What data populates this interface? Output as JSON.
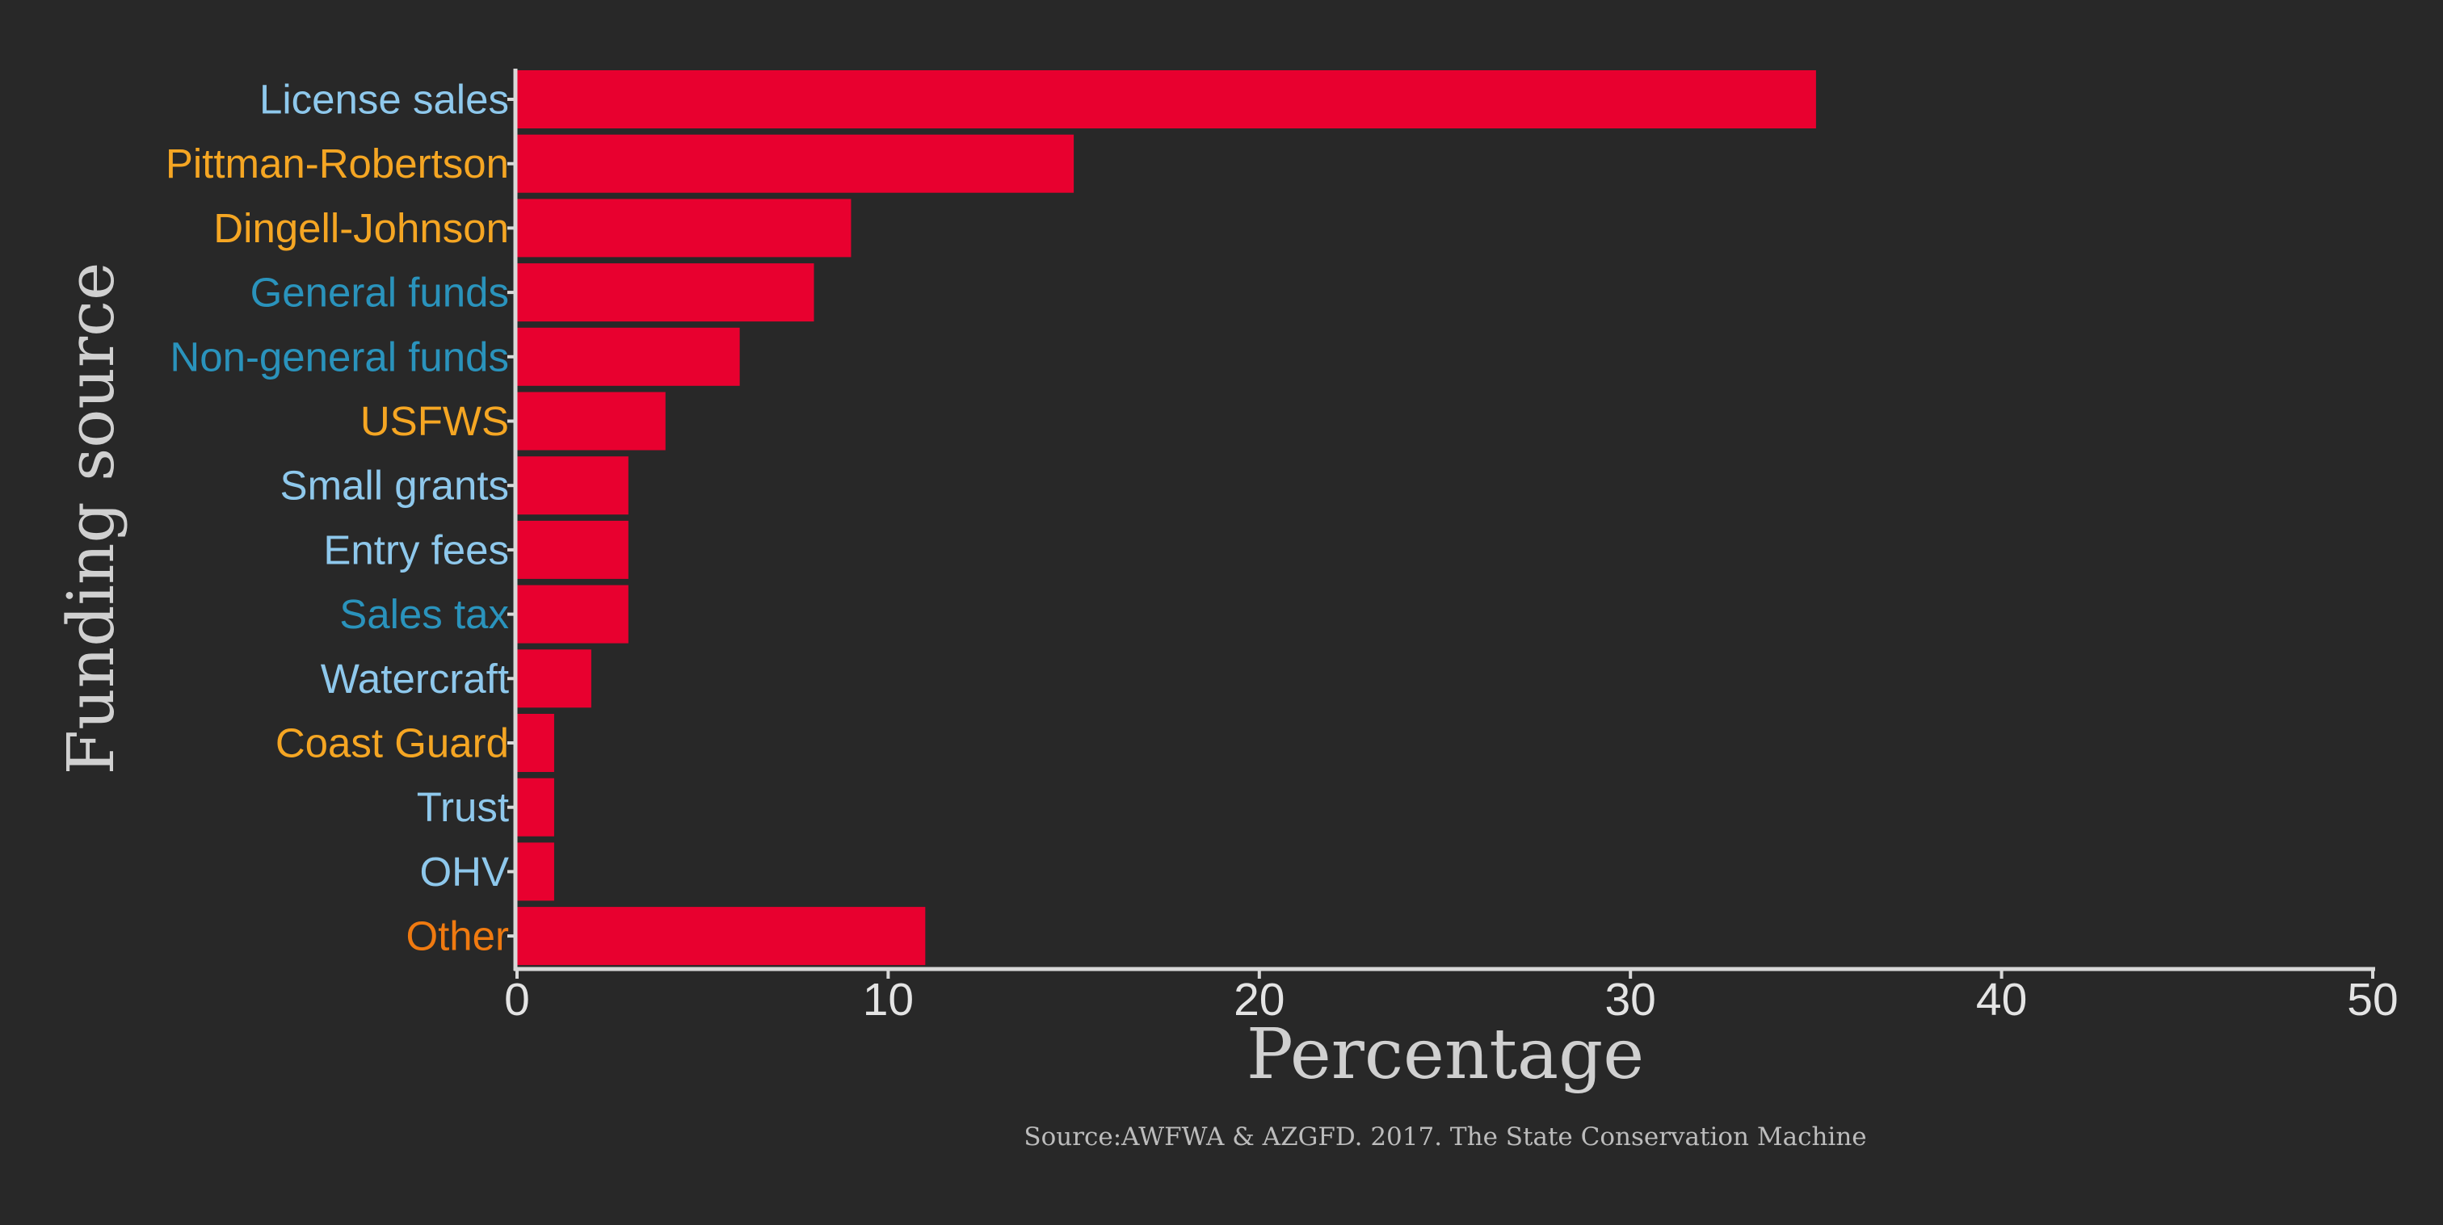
{
  "chart_data": {
    "type": "bar",
    "orientation": "horizontal",
    "categories": [
      "License sales",
      "Pittman-Robertson",
      "Dingell-Johnson",
      "General funds",
      "Non-general funds",
      "USFWS",
      "Small grants",
      "Entry fees",
      "Sales tax",
      "Watercraft",
      "Coast Guard",
      "Trust",
      "OHV",
      "Other"
    ],
    "values": [
      35,
      15,
      9,
      8,
      6,
      4,
      3,
      3,
      3,
      2,
      1,
      1,
      1,
      11
    ],
    "category_colors": [
      "#8ec8ec",
      "#f5a623",
      "#f5a623",
      "#2a93bc",
      "#2a93bc",
      "#f5a623",
      "#8ec8ec",
      "#8ec8ec",
      "#2a93bc",
      "#8ec8ec",
      "#f5a623",
      "#8ec8ec",
      "#8ec8ec",
      "#f07a10"
    ],
    "bar_color": "#e8002f",
    "xlabel": "Percentage",
    "ylabel": "Funding source",
    "xlim": [
      0,
      50
    ],
    "xticks": [
      0,
      10,
      20,
      30,
      40,
      50
    ],
    "grid": false,
    "legend": "none",
    "caption": "Source:AWFWA & AZGFD. 2017. The State Conservation Machine"
  },
  "colors": {
    "background": "#282828",
    "axis": "#d8d8d8"
  }
}
